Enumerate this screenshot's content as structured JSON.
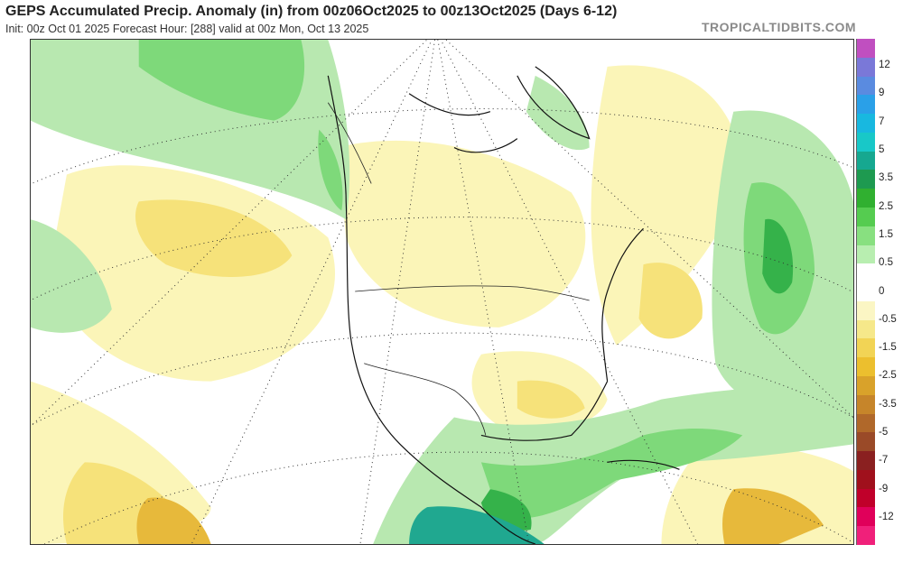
{
  "header": {
    "title": "GEPS Accumulated Precip. Anomaly (in) from 00z06Oct2025 to 00z13Oct2025 (Days 6-12)",
    "subtitle": "Init: 00z Oct 01 2025   Forecast Hour: [288]   valid at 00z Mon, Oct 13 2025",
    "brand": "TROPICALTIDBITS.COM"
  },
  "colors": {
    "wet_light": "#b8e8b0",
    "wet_mid": "#7ed97a",
    "wet_dark": "#35b24a",
    "wet_teal": "#20a890",
    "dry_light": "#fbf5b8",
    "dry_mid": "#f6e27a",
    "dry_dark": "#e7b93b",
    "dry_brown": "#c98d2c"
  },
  "legend": {
    "units": "in",
    "labels": [
      "12",
      "9",
      "7",
      "5",
      "3.5",
      "2.5",
      "1.5",
      "0.5",
      "0",
      "-0.5",
      "-1.5",
      "-2.5",
      "-3.5",
      "-5",
      "-7",
      "-9",
      "-12"
    ],
    "swatches": [
      "#c04fc0",
      "#7a78d8",
      "#5a8be0",
      "#2aa0e8",
      "#18b8e0",
      "#18c8c8",
      "#16a890",
      "#1e9a50",
      "#30b030",
      "#55cc50",
      "#88e080",
      "#b8eeb0",
      "#ffffff",
      "#ffffff",
      "#fbf6c4",
      "#f6e88a",
      "#f2d455",
      "#ecbf2e",
      "#d9a22a",
      "#c6852a",
      "#b0682a",
      "#9a4a28",
      "#8a2020",
      "#a0101c",
      "#c0002a",
      "#e0005a",
      "#f0207a"
    ]
  }
}
